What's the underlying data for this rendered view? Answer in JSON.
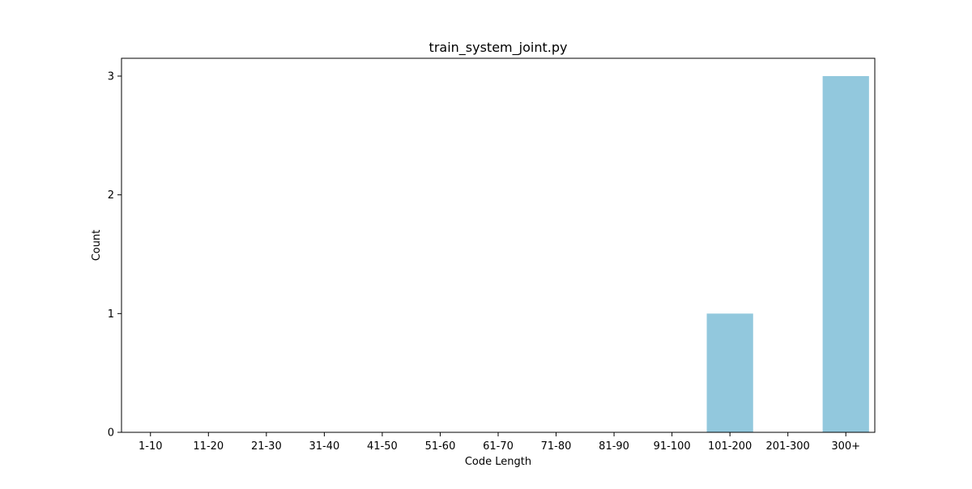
{
  "chart_data": {
    "type": "bar",
    "title": "train_system_joint.py",
    "xlabel": "Code Length",
    "ylabel": "Count",
    "categories": [
      "1-10",
      "11-20",
      "21-30",
      "31-40",
      "41-50",
      "51-60",
      "61-70",
      "71-80",
      "81-90",
      "91-100",
      "101-200",
      "201-300",
      "300+"
    ],
    "values": [
      0,
      0,
      0,
      0,
      0,
      0,
      0,
      0,
      0,
      0,
      1,
      0,
      3
    ],
    "yticks": [
      0,
      1,
      2,
      3
    ],
    "ylim": [
      0,
      3.15
    ],
    "bar_color": "#92c8dd",
    "grid": false,
    "legend": "none"
  }
}
